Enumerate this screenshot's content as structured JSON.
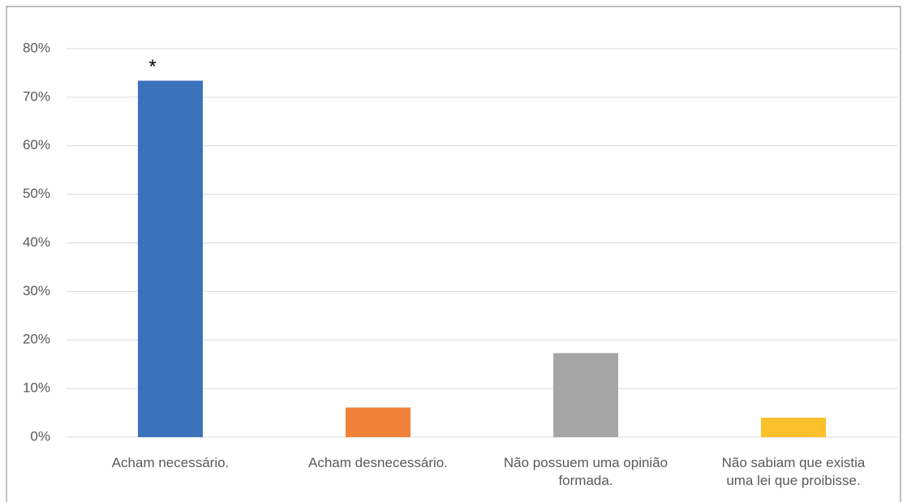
{
  "chart_data": {
    "type": "bar",
    "categories": [
      "Acham necessário.",
      "Acham desnecessário.",
      "Não possuem uma opinião formada.",
      "Não sabiam que existia uma lei que proibisse."
    ],
    "values": [
      73.4,
      6.1,
      17.3,
      4.0
    ],
    "colors": [
      "#3b72bc",
      "#f0823a",
      "#a5a5a5",
      "#fcc02b"
    ],
    "annotation": "*",
    "ylim": [
      0,
      80
    ],
    "yticks": [
      {
        "value": 0,
        "label": "0%"
      },
      {
        "value": 10,
        "label": "10%"
      },
      {
        "value": 20,
        "label": "20%"
      },
      {
        "value": 30,
        "label": "30%"
      },
      {
        "value": 40,
        "label": "40%"
      },
      {
        "value": 50,
        "label": "50%"
      },
      {
        "value": 60,
        "label": "60%"
      },
      {
        "value": 70,
        "label": "70%"
      },
      {
        "value": 80,
        "label": "80%"
      }
    ],
    "grid": true
  }
}
